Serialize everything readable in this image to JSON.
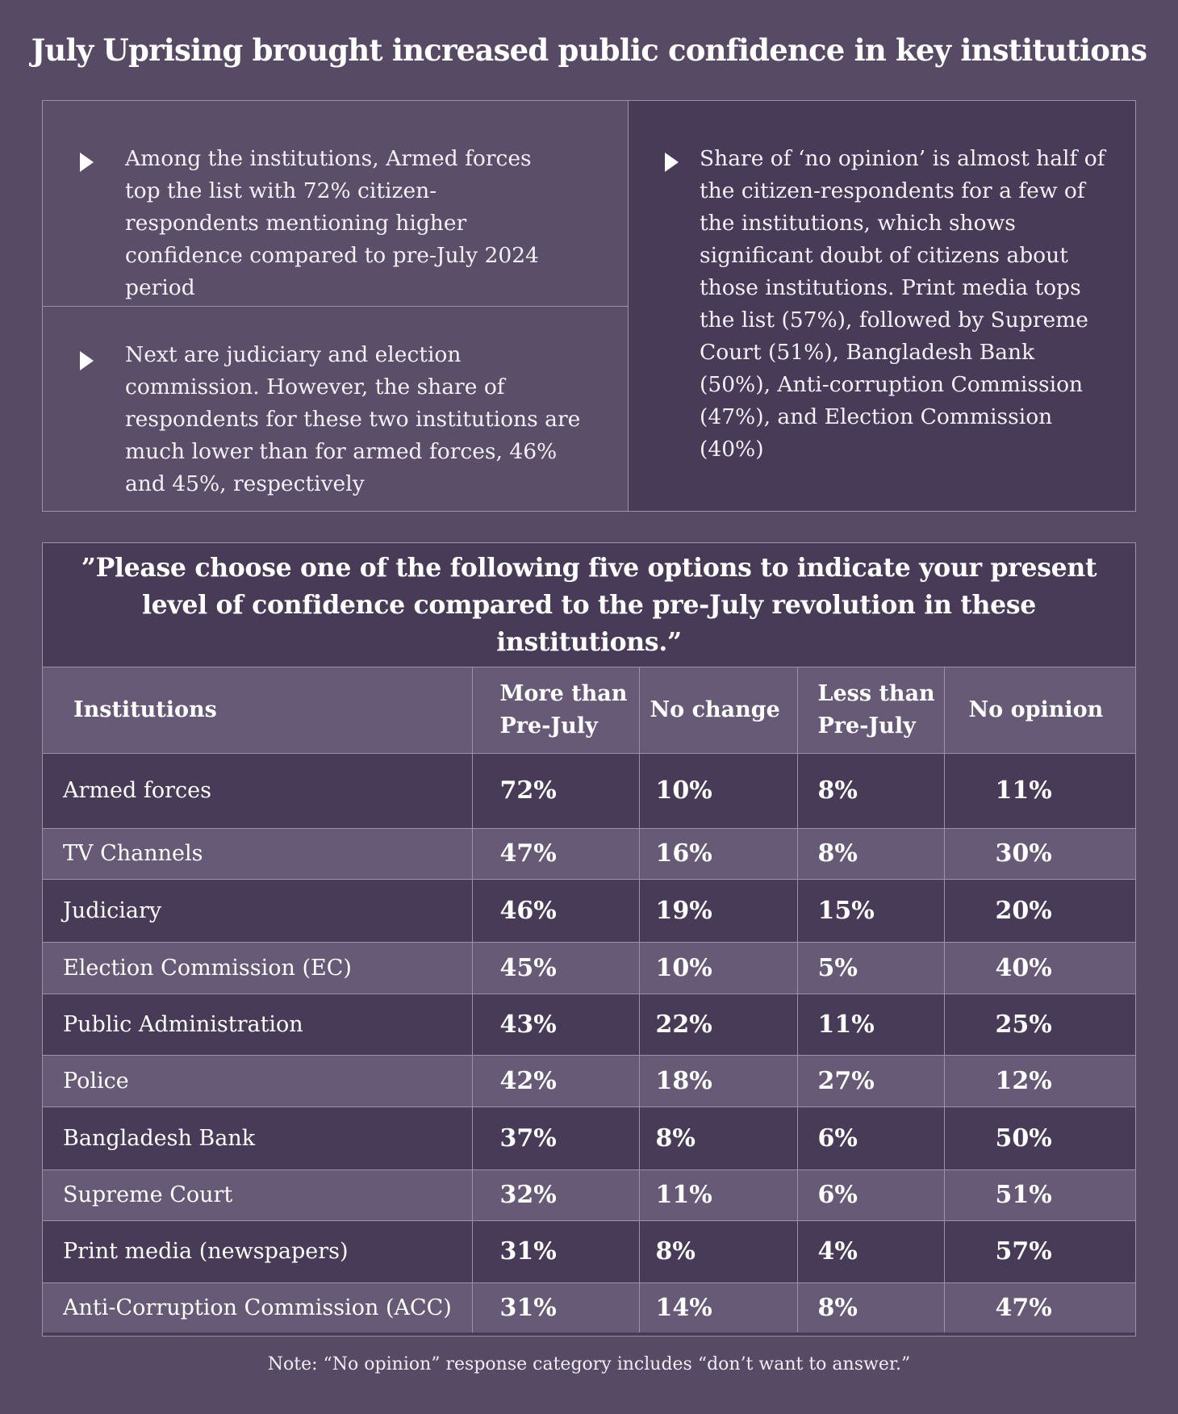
{
  "title": "July Uprising brought increased public confidence in key institutions",
  "insights": {
    "point1": "Among the institutions, Armed forces top the list with 72% citizen-respondents mentioning higher confidence compared to pre-July 2024 period",
    "point2": "Next are judiciary and election commission. However, the share of respondents for these two institutions are much lower than for armed forces, 46% and 45%, respectively",
    "point3": "Share of ‘no opinion’ is almost half of the citizen-respondents for a few of the institutions, which shows significant doubt of citizens about those institutions. Print media tops the list (57%), followed by Supreme Court (51%), Bangladesh Bank (50%), Anti-corruption Commission (47%), and Election Commission (40%)"
  },
  "question": "”Please choose one of the following five options to indicate your present level of confidence compared to the pre-July revolution in these institutions.”",
  "note": "Note: “No opinion” response category includes “don’t want to answer.”",
  "chart_data": {
    "type": "table",
    "columns": [
      "Institutions",
      "More than Pre-July",
      "No change",
      "Less than Pre-July",
      "No opinion"
    ],
    "rows": [
      {
        "institution": "Armed forces",
        "more": "72%",
        "no_change": "10%",
        "less": "8%",
        "no_opinion": "11%"
      },
      {
        "institution": "TV Channels",
        "more": "47%",
        "no_change": "16%",
        "less": "8%",
        "no_opinion": "30%"
      },
      {
        "institution": "Judiciary",
        "more": "46%",
        "no_change": "19%",
        "less": "15%",
        "no_opinion": "20%"
      },
      {
        "institution": "Election Commission (EC)",
        "more": "45%",
        "no_change": "10%",
        "less": "5%",
        "no_opinion": "40%"
      },
      {
        "institution": "Public Administration",
        "more": "43%",
        "no_change": "22%",
        "less": "11%",
        "no_opinion": "25%"
      },
      {
        "institution": "Police",
        "more": "42%",
        "no_change": "18%",
        "less": "27%",
        "no_opinion": "12%"
      },
      {
        "institution": "Bangladesh Bank",
        "more": "37%",
        "no_change": "8%",
        "less": "6%",
        "no_opinion": "50%"
      },
      {
        "institution": "Supreme Court",
        "more": "32%",
        "no_change": "11%",
        "less": "6%",
        "no_opinion": "51%"
      },
      {
        "institution": "Print media (newspapers)",
        "more": "31%",
        "no_change": "8%",
        "less": "4%",
        "no_opinion": "57%"
      },
      {
        "institution": "Anti-Corruption Commission (ACC)",
        "more": "31%",
        "no_change": "14%",
        "less": "8%",
        "no_opinion": "47%"
      }
    ]
  }
}
